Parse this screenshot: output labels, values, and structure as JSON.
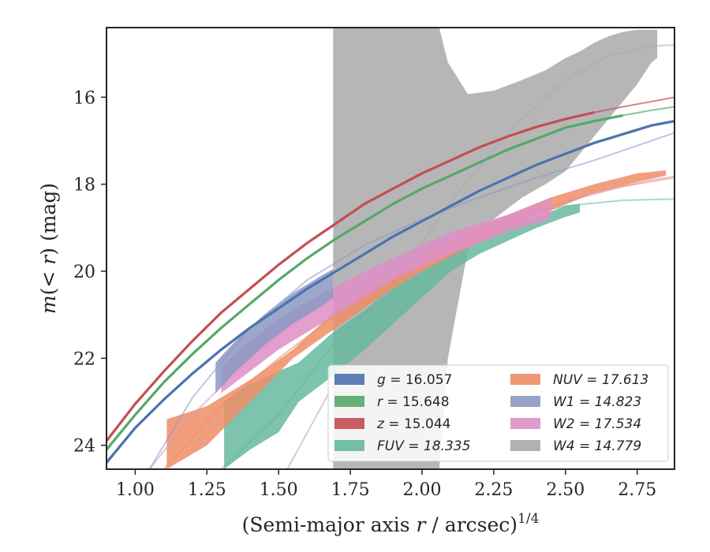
{
  "chart_data": {
    "type": "line",
    "xlabel_main": "(Semi-major axis ",
    "xlabel_var": "r",
    "xlabel_unit": " / arcsec)",
    "xlabel_exp": "1/4",
    "ylabel_prefix": "m(< ",
    "ylabel_var": "r",
    "ylabel_suffix": ") (mag)",
    "xlim": [
      0.9,
      2.88
    ],
    "ylim": [
      24.55,
      14.4
    ],
    "y_inverted": true,
    "xticks": [
      "1.00",
      "1.25",
      "1.50",
      "1.75",
      "2.00",
      "2.25",
      "2.50",
      "2.75"
    ],
    "yticks": [
      "16",
      "18",
      "20",
      "22",
      "24"
    ],
    "grid": false,
    "legend_placement": "lower-right",
    "legend": [
      {
        "var": "g",
        "value": "16.057",
        "italic_all": false,
        "color": "#4c72b0"
      },
      {
        "var": "r",
        "value": "15.648",
        "italic_all": false,
        "color": "#55a868"
      },
      {
        "var": "z",
        "value": "15.044",
        "italic_all": false,
        "color": "#c44e52"
      },
      {
        "var": "FUV",
        "value": "18.335",
        "italic_all": true,
        "color": "#66b8a0"
      },
      {
        "var": "NUV",
        "value": "17.613",
        "italic_all": true,
        "color": "#ee8d66"
      },
      {
        "var": "W1",
        "value": "14.823",
        "italic_all": true,
        "color": "#8b98c2"
      },
      {
        "var": "W2",
        "value": "17.534",
        "italic_all": true,
        "color": "#de8fc7"
      },
      {
        "var": "W4",
        "value": "14.779",
        "italic_all": true,
        "color": "#a9a9a9"
      }
    ],
    "series": [
      {
        "name": "W4",
        "color": "#a9a9a9",
        "band_x": [
          1.69,
          2.06,
          2.09,
          2.16,
          2.25,
          2.35,
          2.43,
          2.5,
          2.55,
          2.6,
          2.65,
          2.7,
          2.75,
          2.8,
          2.82
        ],
        "band_low": [
          24.55,
          24.55,
          22.0,
          19.5,
          18.8,
          18.3,
          18.0,
          17.7,
          17.3,
          16.9,
          16.5,
          16.1,
          15.7,
          15.2,
          15.1
        ],
        "band_high": [
          14.4,
          14.4,
          15.2,
          15.93,
          15.85,
          15.6,
          15.38,
          15.1,
          14.95,
          14.75,
          14.6,
          14.5,
          14.45,
          14.45,
          14.45
        ],
        "model_x": [
          1.53,
          1.7,
          1.9,
          2.1,
          2.3,
          2.5,
          2.65,
          2.8,
          2.88
        ],
        "model_y": [
          24.55,
          22.5,
          20.3,
          18.4,
          16.8,
          15.6,
          15.05,
          14.82,
          14.8
        ]
      },
      {
        "name": "FUV",
        "color": "#66b8a0",
        "band_x": [
          1.31,
          1.4,
          1.5,
          1.57,
          1.69,
          1.8,
          1.9,
          2.0,
          2.1,
          2.2,
          2.3,
          2.4,
          2.5,
          2.55
        ],
        "band_low": [
          24.55,
          24.1,
          23.7,
          23.0,
          22.4,
          21.8,
          21.2,
          20.6,
          20.0,
          19.6,
          19.3,
          19.0,
          18.75,
          18.65
        ],
        "band_high": [
          23.0,
          22.6,
          22.3,
          22.1,
          21.4,
          20.9,
          20.4,
          20.0,
          19.6,
          19.25,
          19.0,
          18.75,
          18.5,
          18.45
        ],
        "model_x": [
          1.3,
          1.5,
          1.7,
          1.9,
          2.1,
          2.3,
          2.5,
          2.7,
          2.88
        ],
        "model_y": [
          24.55,
          23.3,
          21.6,
          20.3,
          19.4,
          18.8,
          18.5,
          18.37,
          18.34
        ]
      },
      {
        "name": "NUV",
        "color": "#ee8d66",
        "band_x": [
          1.11,
          1.25,
          1.4,
          1.55,
          1.7,
          1.85,
          2.0,
          2.15,
          2.3,
          2.45,
          2.6,
          2.75,
          2.85
        ],
        "band_low": [
          24.55,
          24.0,
          23.0,
          22.0,
          21.3,
          20.6,
          20.0,
          19.5,
          19.0,
          18.6,
          18.2,
          17.95,
          17.8
        ],
        "band_high": [
          23.4,
          23.1,
          22.5,
          21.8,
          20.9,
          20.3,
          19.7,
          19.15,
          18.7,
          18.3,
          18.0,
          17.75,
          17.68
        ],
        "model_x": [
          1.1,
          1.3,
          1.5,
          1.7,
          1.9,
          2.1,
          2.3,
          2.5,
          2.7,
          2.88
        ],
        "model_y": [
          24.55,
          23.1,
          22.0,
          21.0,
          20.2,
          19.5,
          18.9,
          18.4,
          18.05,
          17.85
        ]
      },
      {
        "name": "W2",
        "color": "#de8fc7",
        "band_x": [
          1.3,
          1.4,
          1.5,
          1.6,
          1.7,
          1.8,
          1.9,
          2.0,
          2.1,
          2.2,
          2.3,
          2.4,
          2.45
        ],
        "band_low": [
          22.8,
          22.3,
          21.8,
          21.4,
          21.0,
          20.6,
          20.2,
          19.9,
          19.6,
          19.35,
          19.1,
          18.9,
          18.8
        ],
        "band_high": [
          22.2,
          21.6,
          21.1,
          20.7,
          20.35,
          20.0,
          19.7,
          19.4,
          19.1,
          18.9,
          18.7,
          18.45,
          18.3
        ],
        "model_x": [
          1.05,
          1.2,
          1.4,
          1.6,
          1.8,
          2.0,
          2.2,
          2.4,
          2.6,
          2.8,
          2.88
        ],
        "model_y": [
          24.55,
          23.3,
          22.0,
          21.0,
          20.2,
          19.6,
          19.1,
          18.6,
          18.2,
          17.9,
          17.82
        ]
      },
      {
        "name": "W1",
        "color": "#8b98c2",
        "band_x": [
          1.28,
          1.35,
          1.45,
          1.55,
          1.65,
          1.69
        ],
        "band_low": [
          22.8,
          22.3,
          21.7,
          21.2,
          20.8,
          20.6
        ],
        "band_high": [
          22.1,
          21.6,
          21.0,
          20.5,
          20.1,
          19.95
        ],
        "model_x": [
          1.05,
          1.2,
          1.4,
          1.6,
          1.8,
          2.0,
          2.2,
          2.4,
          2.6,
          2.8,
          2.88
        ],
        "model_y": [
          24.55,
          22.9,
          21.3,
          20.2,
          19.4,
          18.8,
          18.3,
          17.85,
          17.45,
          17.0,
          16.82
        ]
      },
      {
        "name": "g",
        "color": "#4c72b0",
        "line_x": [
          0.9,
          1.0,
          1.1,
          1.2,
          1.3,
          1.4,
          1.5,
          1.6,
          1.7,
          1.8,
          1.9,
          2.0,
          2.1,
          2.2,
          2.3,
          2.4,
          2.5,
          2.6,
          2.7,
          2.8,
          2.88
        ],
        "line_y": [
          24.4,
          23.6,
          22.95,
          22.35,
          21.8,
          21.3,
          20.85,
          20.4,
          20.0,
          19.6,
          19.2,
          18.85,
          18.5,
          18.15,
          17.85,
          17.55,
          17.3,
          17.05,
          16.85,
          16.65,
          16.55
        ],
        "solid_until": 2.88
      },
      {
        "name": "r",
        "color": "#55a868",
        "line_x": [
          0.9,
          1.0,
          1.1,
          1.2,
          1.3,
          1.4,
          1.5,
          1.6,
          1.7,
          1.8,
          1.9,
          2.0,
          2.1,
          2.2,
          2.3,
          2.4,
          2.5,
          2.6,
          2.7,
          2.8,
          2.88
        ],
        "line_y": [
          24.1,
          23.3,
          22.55,
          21.9,
          21.3,
          20.75,
          20.2,
          19.7,
          19.25,
          18.85,
          18.45,
          18.1,
          17.8,
          17.5,
          17.2,
          16.95,
          16.7,
          16.55,
          16.42,
          16.3,
          16.22
        ],
        "solid_until": 2.73
      },
      {
        "name": "z",
        "color": "#c44e52",
        "line_x": [
          0.9,
          1.0,
          1.1,
          1.2,
          1.3,
          1.4,
          1.5,
          1.6,
          1.7,
          1.8,
          1.9,
          2.0,
          2.1,
          2.2,
          2.3,
          2.4,
          2.5,
          2.6,
          2.7,
          2.8,
          2.88
        ],
        "line_y": [
          23.9,
          23.05,
          22.3,
          21.6,
          20.95,
          20.4,
          19.85,
          19.35,
          18.9,
          18.45,
          18.1,
          17.75,
          17.45,
          17.15,
          16.9,
          16.68,
          16.5,
          16.35,
          16.22,
          16.1,
          16.0
        ],
        "solid_until": 2.62
      }
    ]
  }
}
